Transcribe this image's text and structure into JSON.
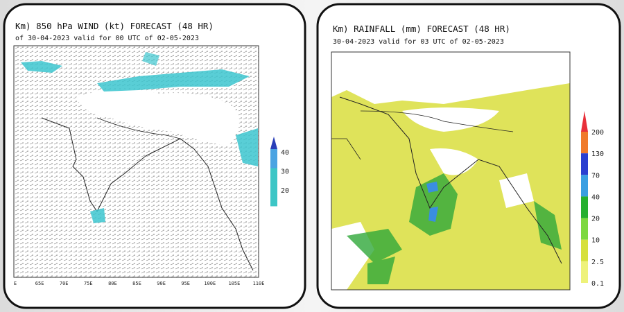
{
  "left_panel": {
    "title": "Km) 850 hPa WIND (kt) FORECAST (48 HR)",
    "subtitle": "of 30-04-2023 valid for 00 UTC of 02-05-2023",
    "colorbar_labels": [
      "40",
      "30",
      "20"
    ],
    "x_labels": [
      "E",
      "65E",
      "70E",
      "75E",
      "80E",
      "85E",
      "90E",
      "95E",
      "100E",
      "105E",
      "110E"
    ]
  },
  "right_panel": {
    "title": "Km) RAINFALL (mm) FORECAST (48 HR)",
    "subtitle": "30-04-2023 valid for 03 UTC of 02-05-2023",
    "colorbar_labels": [
      "200",
      "130",
      "70",
      "40",
      "20",
      "10",
      "2.5",
      "0.1"
    ]
  }
}
